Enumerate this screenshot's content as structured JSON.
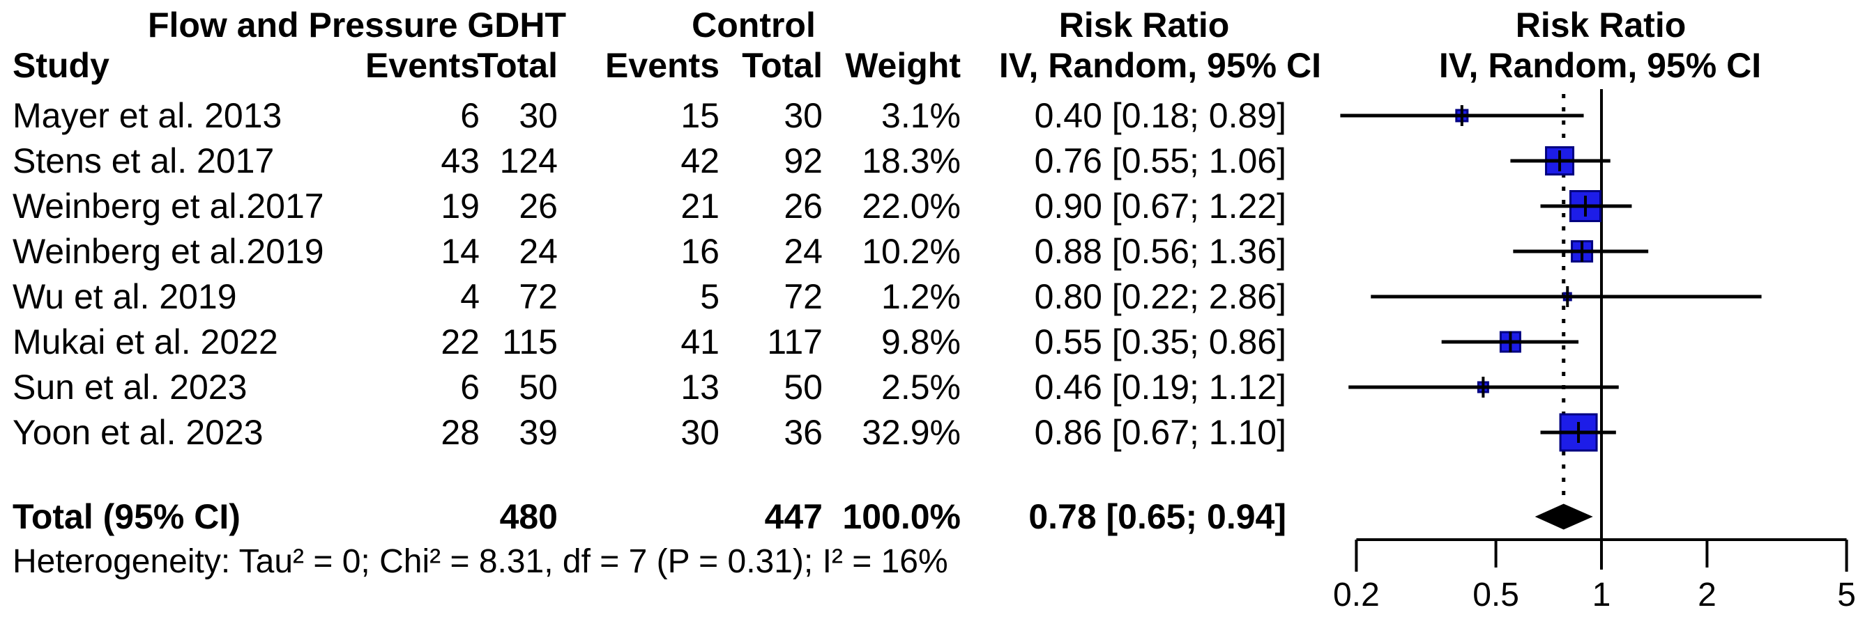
{
  "header": {
    "group_gdht": "Flow and Pressure GDHT",
    "group_control": "Control",
    "risk_ratio_left": "Risk Ratio",
    "risk_ratio_right": "Risk Ratio",
    "col_study": "Study",
    "col_events": "Events",
    "col_total": "Total",
    "col_weight": "Weight",
    "col_iv_random_left": "IV, Random, 95% CI",
    "col_iv_random_right": "IV, Random, 95% CI"
  },
  "chart_data": {
    "type": "scatter",
    "subtype": "forest-plot",
    "effect_measure": "Risk Ratio",
    "model": "IV, Random, 95% CI",
    "x_scale": "log",
    "x_ticks": [
      0.2,
      0.5,
      1,
      2,
      5
    ],
    "x_tick_labels": [
      "0.2",
      "0.5",
      "1",
      "2",
      "5"
    ],
    "reference_line": 1,
    "pooled_line": 0.78,
    "studies": [
      {
        "name": "Mayer et al. 2013",
        "gdht_events": "6",
        "gdht_total": "30",
        "control_events": "15",
        "control_total": "30",
        "weight": "3.1%",
        "weight_pct": 3.1,
        "ci_label": "0.40 [0.18; 0.89]",
        "rr": 0.4,
        "ci_low": 0.18,
        "ci_high": 0.89
      },
      {
        "name": "Stens et al. 2017",
        "gdht_events": "43",
        "gdht_total": "124",
        "control_events": "42",
        "control_total": "92",
        "weight": "18.3%",
        "weight_pct": 18.3,
        "ci_label": "0.76 [0.55; 1.06]",
        "rr": 0.76,
        "ci_low": 0.55,
        "ci_high": 1.06
      },
      {
        "name": "Weinberg et al.2017",
        "gdht_events": "19",
        "gdht_total": "26",
        "control_events": "21",
        "control_total": "26",
        "weight": "22.0%",
        "weight_pct": 22.0,
        "ci_label": "0.90 [0.67; 1.22]",
        "rr": 0.9,
        "ci_low": 0.67,
        "ci_high": 1.22
      },
      {
        "name": "Weinberg et al.2019",
        "gdht_events": "14",
        "gdht_total": "24",
        "control_events": "16",
        "control_total": "24",
        "weight": "10.2%",
        "weight_pct": 10.2,
        "ci_label": "0.88 [0.56; 1.36]",
        "rr": 0.88,
        "ci_low": 0.56,
        "ci_high": 1.36
      },
      {
        "name": "Wu et al. 2019",
        "gdht_events": "4",
        "gdht_total": "72",
        "control_events": "5",
        "control_total": "72",
        "weight": "1.2%",
        "weight_pct": 1.2,
        "ci_label": "0.80 [0.22; 2.86]",
        "rr": 0.8,
        "ci_low": 0.22,
        "ci_high": 2.86
      },
      {
        "name": "Mukai et al. 2022",
        "gdht_events": "22",
        "gdht_total": "115",
        "control_events": "41",
        "control_total": "117",
        "weight": "9.8%",
        "weight_pct": 9.8,
        "ci_label": "0.55 [0.35; 0.86]",
        "rr": 0.55,
        "ci_low": 0.35,
        "ci_high": 0.86
      },
      {
        "name": "Sun et al. 2023",
        "gdht_events": "6",
        "gdht_total": "50",
        "control_events": "13",
        "control_total": "50",
        "weight": "2.5%",
        "weight_pct": 2.5,
        "ci_label": "0.46 [0.19; 1.12]",
        "rr": 0.46,
        "ci_low": 0.19,
        "ci_high": 1.12
      },
      {
        "name": "Yoon et al. 2023",
        "gdht_events": "28",
        "gdht_total": "39",
        "control_events": "30",
        "control_total": "36",
        "weight": "32.9%",
        "weight_pct": 32.9,
        "ci_label": "0.86 [0.67; 1.10]",
        "rr": 0.86,
        "ci_low": 0.67,
        "ci_high": 1.1
      }
    ],
    "total": {
      "label": "Total (95% CI)",
      "gdht_total": "480",
      "control_total": "447",
      "weight": "100.0%",
      "ci_label": "0.78 [0.65; 0.94]",
      "rr": 0.78,
      "ci_low": 0.65,
      "ci_high": 0.94
    },
    "heterogeneity": "Heterogeneity: Tau² = 0; Chi² = 8.31, df = 7 (P = 0.31); I² = 16%"
  },
  "colors": {
    "square_fill": "#1d1de8",
    "square_border": "#000080",
    "line": "#000000",
    "diamond": "#000000",
    "text": "#000000"
  }
}
